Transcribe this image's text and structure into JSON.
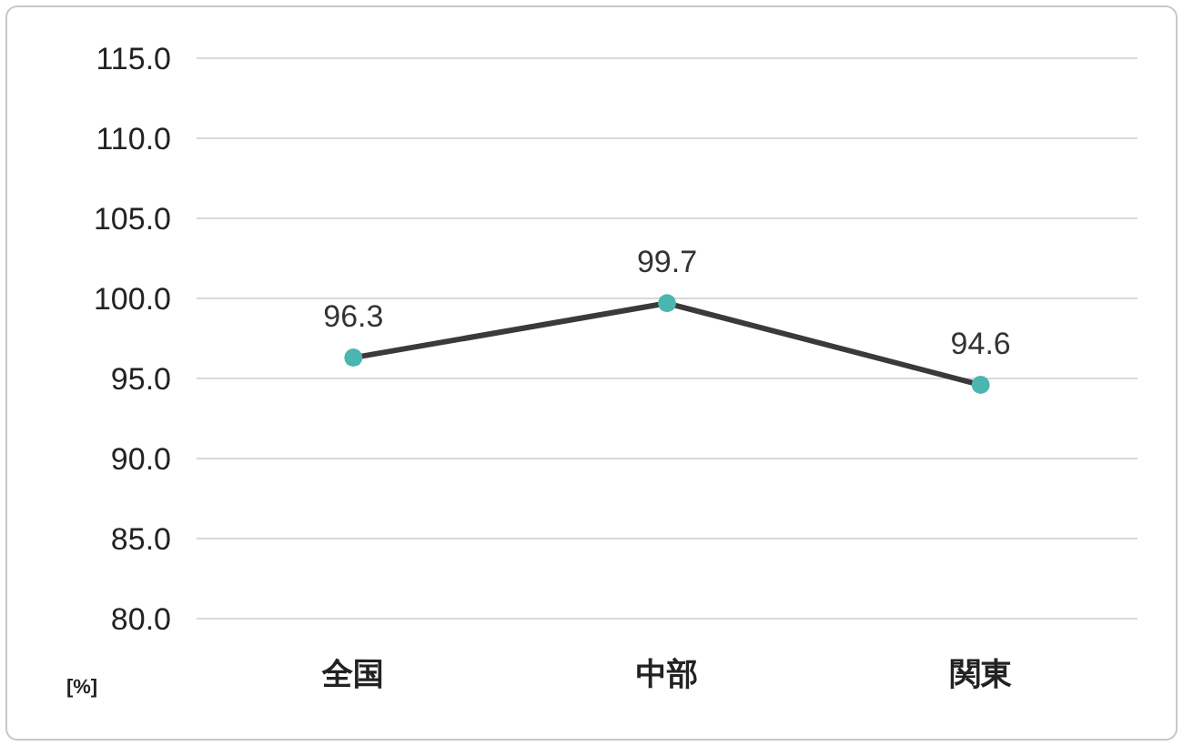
{
  "chart_data": {
    "type": "line",
    "categories": [
      "全国",
      "中部",
      "関東"
    ],
    "series": [
      {
        "color": "#3a3a3a",
        "colors": [
          "#4bb5b0",
          "#4bb5b0",
          "#4bb5b0"
        ],
        "values": [
          96.3,
          99.7,
          94.6
        ]
      }
    ],
    "ylabel": "[%]",
    "ylim": [
      80,
      115
    ],
    "yticks": [
      {
        "value": 80,
        "label": "80.0"
      },
      {
        "value": 85,
        "label": "85.0"
      },
      {
        "value": 90,
        "label": "90.0"
      },
      {
        "value": 95,
        "label": "95.0"
      },
      {
        "value": 100,
        "label": "100.0"
      },
      {
        "value": 105,
        "label": "105.0"
      },
      {
        "value": 110,
        "label": "110.0"
      },
      {
        "value": 115,
        "label": "115.0"
      }
    ],
    "grid": "y",
    "marker": "circle",
    "line_style": "solid",
    "data_labels": true
  }
}
